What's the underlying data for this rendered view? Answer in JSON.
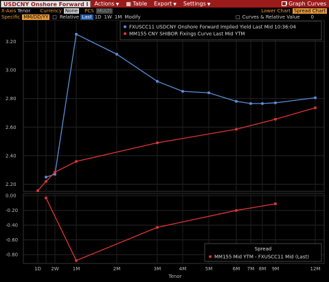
{
  "header": {
    "title": "USDCNY Onshore Forward I",
    "menu": [
      "Actions",
      "Table",
      "Export",
      "Settings"
    ],
    "graph_curves": "Graph Curves"
  },
  "settings_bar": {
    "xaxis_label": "X-Axis",
    "xaxis_value": "Tenor",
    "currency_label": "Currency",
    "currency_value": "None",
    "pcs_label": "PCS",
    "pcs_value": "MULTI",
    "lower_chart_label": "Lower Chart",
    "lower_chart_value": "Spread Chart"
  },
  "toolbar": {
    "specific_label": "Specific",
    "specific_value": "MM/DD/YY",
    "relative_label": "Relative",
    "buttons": [
      "Last",
      "1D",
      "1W",
      "1M",
      "Modify"
    ],
    "curves_label": "Curves & Relative Value",
    "curves_count": "0"
  },
  "colors": {
    "blue": "#5b8fd9",
    "red": "#e03535",
    "background": "#000000",
    "grid": "#2a2a2a"
  },
  "chart_data": [
    {
      "type": "line",
      "xlabel": "",
      "ylabel": "",
      "ylim": [
        2.15,
        3.35
      ],
      "yticks": [
        "3.20",
        "3.00",
        "2.80",
        "2.60",
        "2.40",
        "2.20"
      ],
      "ytick_values": [
        3.2,
        3.0,
        2.8,
        2.6,
        2.4,
        2.2
      ],
      "grid": true,
      "legend_position": "top-right",
      "series": [
        {
          "name": "FXUSCC11 USDCNY Onshore Forward Implied Yield Last Mid 10:36:04",
          "color": "#5b8fd9",
          "x": [
            "1W",
            "2W",
            "1M",
            "2M",
            "3M",
            "4M",
            "5M",
            "6M",
            "7M",
            "8M",
            "9M",
            "12M"
          ],
          "values": [
            2.25,
            2.27,
            3.25,
            3.11,
            2.92,
            2.85,
            2.84,
            2.78,
            2.765,
            2.765,
            2.77,
            2.805
          ]
        },
        {
          "name": "MM155 CNY SHIBOR Fixings Curve Last Mid YTM",
          "color": "#e03535",
          "x": [
            "1D",
            "1W",
            "2W",
            "1M",
            "3M",
            "6M",
            "9M",
            "12M"
          ],
          "values": [
            2.155,
            2.22,
            2.285,
            2.36,
            2.49,
            2.585,
            2.655,
            2.735
          ]
        }
      ]
    },
    {
      "type": "line",
      "title": "Spread",
      "xlabel": "Tenor",
      "ylim": [
        -0.92,
        0.03
      ],
      "yticks": [
        "0.00",
        "-0.20",
        "-0.40",
        "-0.60",
        "-0.80"
      ],
      "ytick_values": [
        0,
        -0.2,
        -0.4,
        -0.6,
        -0.8
      ],
      "xticks": [
        "1D",
        "2W",
        "1M",
        "2M",
        "3M",
        "4M",
        "5M",
        "6M",
        "7M",
        "8M",
        "9M",
        "12M"
      ],
      "grid": true,
      "legend_position": "bottom-right",
      "series": [
        {
          "name": "MM155 Mid YTM - FXUSCC11 Mid (Last)",
          "color": "#e03535",
          "x": [
            "1W",
            "1M",
            "3M",
            "6M",
            "9M"
          ],
          "values": [
            -0.03,
            -0.88,
            -0.43,
            -0.2,
            -0.11
          ]
        }
      ]
    }
  ]
}
